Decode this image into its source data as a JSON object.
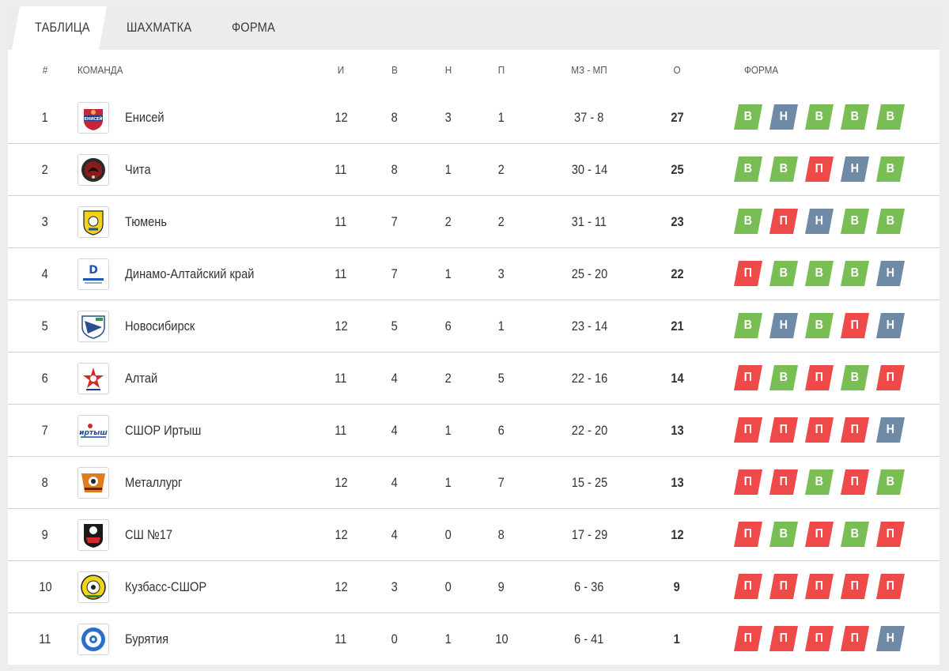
{
  "tabs": [
    {
      "label": "ТАБЛИЦА",
      "active": true
    },
    {
      "label": "ШАХМАТКА",
      "active": false
    },
    {
      "label": "ФОРМА",
      "active": false
    }
  ],
  "columns": {
    "num": "#",
    "team": "КОМАНДА",
    "games": "И",
    "wins": "В",
    "draws": "Н",
    "losses": "П",
    "goals": "МЗ - МП",
    "points": "О",
    "form": "ФОРМА"
  },
  "form_colors": {
    "В": "#79bd55",
    "Н": "#6f8aa6",
    "П": "#ee4a4a"
  },
  "teams": [
    {
      "pos": "1",
      "logo": "yenisey-logo",
      "name": "Енисей",
      "games": "12",
      "wins": "8",
      "draws": "3",
      "losses": "1",
      "goals": "37 - 8",
      "points": "27",
      "form": [
        "В",
        "Н",
        "В",
        "В",
        "В"
      ]
    },
    {
      "pos": "2",
      "logo": "chita-logo",
      "name": "Чита",
      "games": "11",
      "wins": "8",
      "draws": "1",
      "losses": "2",
      "goals": "30 - 14",
      "points": "25",
      "form": [
        "В",
        "В",
        "П",
        "Н",
        "В"
      ]
    },
    {
      "pos": "3",
      "logo": "tyumen-logo",
      "name": "Тюмень",
      "games": "11",
      "wins": "7",
      "draws": "2",
      "losses": "2",
      "goals": "31 - 11",
      "points": "23",
      "form": [
        "В",
        "П",
        "Н",
        "В",
        "В"
      ]
    },
    {
      "pos": "4",
      "logo": "dynamo-altai-logo",
      "name": "Динамо-Алтайский край",
      "games": "11",
      "wins": "7",
      "draws": "1",
      "losses": "3",
      "goals": "25 - 20",
      "points": "22",
      "form": [
        "П",
        "В",
        "В",
        "В",
        "Н"
      ]
    },
    {
      "pos": "5",
      "logo": "novosibirsk-logo",
      "name": "Новосибирск",
      "games": "12",
      "wins": "5",
      "draws": "6",
      "losses": "1",
      "goals": "23 - 14",
      "points": "21",
      "form": [
        "В",
        "Н",
        "В",
        "П",
        "Н"
      ]
    },
    {
      "pos": "6",
      "logo": "altai-logo",
      "name": "Алтай",
      "games": "11",
      "wins": "4",
      "draws": "2",
      "losses": "5",
      "goals": "22 - 16",
      "points": "14",
      "form": [
        "П",
        "В",
        "П",
        "В",
        "П"
      ]
    },
    {
      "pos": "7",
      "logo": "irtysh-logo",
      "name": "СШОР Иртыш",
      "games": "11",
      "wins": "4",
      "draws": "1",
      "losses": "6",
      "goals": "22 - 20",
      "points": "13",
      "form": [
        "П",
        "П",
        "П",
        "П",
        "Н"
      ]
    },
    {
      "pos": "8",
      "logo": "metallurg-logo",
      "name": "Металлург",
      "games": "12",
      "wins": "4",
      "draws": "1",
      "losses": "7",
      "goals": "15 - 25",
      "points": "13",
      "form": [
        "П",
        "П",
        "В",
        "П",
        "В"
      ]
    },
    {
      "pos": "9",
      "logo": "ssh17-logo",
      "name": "СШ №17",
      "games": "12",
      "wins": "4",
      "draws": "0",
      "losses": "8",
      "goals": "17 - 29",
      "points": "12",
      "form": [
        "П",
        "В",
        "П",
        "В",
        "П"
      ]
    },
    {
      "pos": "10",
      "logo": "kuzbass-logo",
      "name": "Кузбасс-СШОР",
      "games": "12",
      "wins": "3",
      "draws": "0",
      "losses": "9",
      "goals": "6 - 36",
      "points": "9",
      "form": [
        "П",
        "П",
        "П",
        "П",
        "П"
      ]
    },
    {
      "pos": "11",
      "logo": "buryatia-logo",
      "name": "Бурятия",
      "games": "11",
      "wins": "0",
      "draws": "1",
      "losses": "10",
      "goals": "6 - 41",
      "points": "1",
      "form": [
        "П",
        "П",
        "П",
        "П",
        "Н"
      ]
    }
  ]
}
